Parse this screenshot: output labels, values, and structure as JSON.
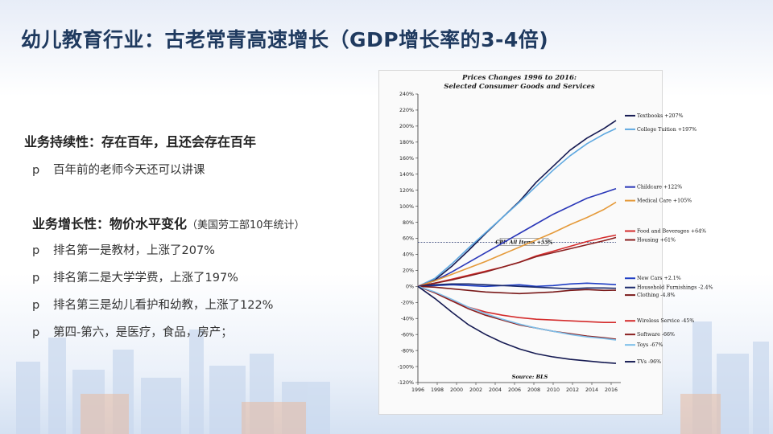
{
  "slide": {
    "title": "幼儿教育行业：古老常青高速增长（GDP增长率的3-4倍)",
    "section1_heading": "业务持续性：存在百年，且还会存在百年",
    "section1_bullets": [
      "百年前的老师今天还可以讲课"
    ],
    "section2_heading": "业务增长性：物价水平变化",
    "section2_note": "（美国劳工部10年统计）",
    "section2_bullets": [
      "排名第一是教材，上涨了207%",
      "排名第二是大学学费，上涨了197%",
      "排名第三是幼儿看护和幼教，上涨了122%",
      "第四-第六，是医疗，食品，房产；"
    ],
    "bullet_marker": "p"
  },
  "chart_data": {
    "type": "line",
    "title": "Prices Changes 1996 to 2016:",
    "subtitle": "Selected Consumer Goods and Services",
    "source": "Source: BLS",
    "x_ticks": [
      "1996",
      "1998",
      "2000",
      "2002",
      "2004",
      "2006",
      "2008",
      "2010",
      "2012",
      "2014",
      "2016"
    ],
    "y_ticks": [
      "240%",
      "220%",
      "200%",
      "180%",
      "160%",
      "140%",
      "120%",
      "100%",
      "80%",
      "60%",
      "40%",
      "20%",
      "0%",
      "-20%",
      "-40%",
      "-60%",
      "-80%",
      "-100%",
      "-120%"
    ],
    "xlim": [
      1996,
      2017
    ],
    "ylim": [
      -120,
      240
    ],
    "grid": false,
    "legend": "right, labels at line ends",
    "annotation": {
      "label": "CPI: All Items +55%",
      "value": 55
    },
    "series": [
      {
        "name": "Textbooks +207%",
        "color": "#151a52",
        "values": [
          0,
          8,
          25,
          45,
          66,
          86,
          106,
          130,
          150,
          170,
          185,
          197,
          207
        ]
      },
      {
        "name": "College Tuition +197%",
        "color": "#5ea8e0",
        "values": [
          0,
          10,
          28,
          48,
          67,
          86,
          105,
          125,
          145,
          163,
          178,
          190,
          197
        ]
      },
      {
        "name": "Childcare +122%",
        "color": "#2a37b8",
        "values": [
          0,
          7,
          18,
          30,
          42,
          54,
          66,
          78,
          90,
          100,
          110,
          117,
          122
        ]
      },
      {
        "name": "Medical Care +105%",
        "color": "#e59a3a",
        "values": [
          0,
          7,
          15,
          23,
          31,
          40,
          49,
          58,
          67,
          77,
          86,
          96,
          105
        ]
      },
      {
        "name": "Food and Beverages +64%",
        "color": "#d42b2b",
        "values": [
          0,
          4,
          9,
          14,
          19,
          24,
          30,
          38,
          44,
          50,
          56,
          61,
          64
        ]
      },
      {
        "name": "Housing +61%",
        "color": "#8a1f1f",
        "values": [
          0,
          4,
          8,
          13,
          18,
          24,
          30,
          37,
          42,
          47,
          52,
          57,
          61
        ]
      },
      {
        "name": "New Cars +2.1%",
        "color": "#1f3ec4",
        "values": [
          0,
          1,
          2,
          1,
          0,
          1,
          2,
          0,
          1,
          3,
          4,
          3,
          2.1
        ]
      },
      {
        "name": "Household Furnishings -2.4%",
        "color": "#1b2a6b",
        "values": [
          0,
          2,
          3,
          3,
          2,
          1,
          0,
          -1,
          -2,
          -3,
          -2,
          -2,
          -2.4
        ]
      },
      {
        "name": "Clothing -4.8%",
        "color": "#7a1a1a",
        "values": [
          0,
          -1,
          -3,
          -5,
          -7,
          -8,
          -9,
          -8,
          -7,
          -5,
          -4,
          -5,
          -4.8
        ]
      },
      {
        "name": "Wireless Service -45%",
        "color": "#d42b2b",
        "values": [
          0,
          -8,
          -18,
          -26,
          -32,
          -36,
          -39,
          -41,
          -42,
          -43,
          -44,
          -45,
          -45
        ]
      },
      {
        "name": "Software -66%",
        "color": "#8a1f1f",
        "values": [
          0,
          -8,
          -18,
          -28,
          -36,
          -42,
          -48,
          -52,
          -56,
          -59,
          -62,
          -64,
          -66
        ]
      },
      {
        "name": "Toys -67%",
        "color": "#7fc0ea",
        "values": [
          0,
          -7,
          -16,
          -26,
          -34,
          -41,
          -47,
          -52,
          -56,
          -60,
          -63,
          -65,
          -67
        ]
      },
      {
        "name": "TVs -96%",
        "color": "#151a52",
        "values": [
          0,
          -15,
          -32,
          -48,
          -60,
          -70,
          -78,
          -84,
          -88,
          -91,
          -93,
          -95,
          -96
        ]
      }
    ],
    "x_values": [
      1996,
      1997.75,
      1999.5,
      2001.25,
      2003,
      2004.75,
      2006.5,
      2008.25,
      2010,
      2011.75,
      2013.5,
      2015.25,
      2016.5
    ]
  }
}
